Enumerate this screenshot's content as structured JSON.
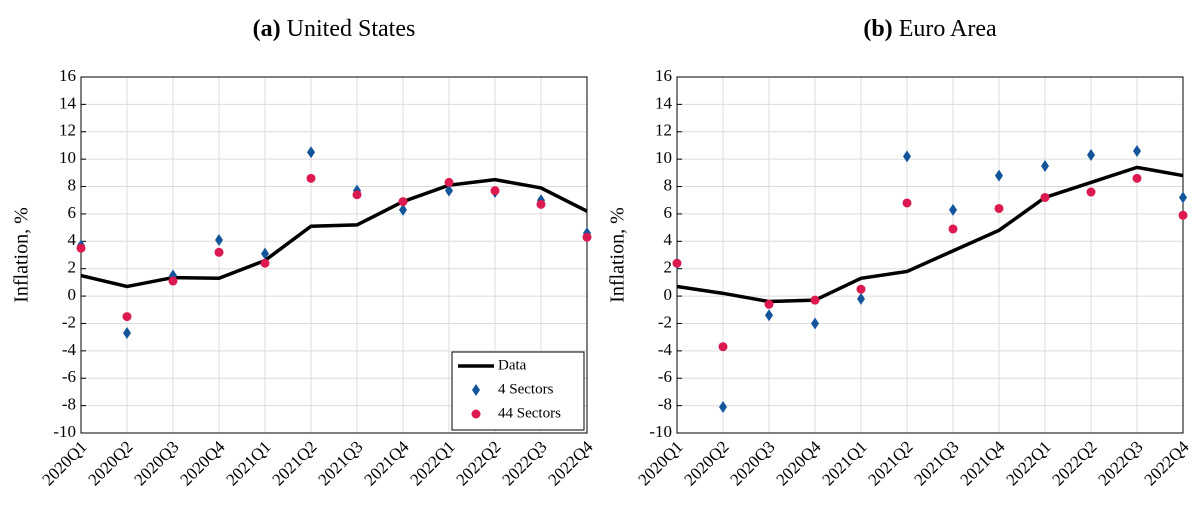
{
  "chart_data": [
    {
      "type": "line",
      "label": "(a)",
      "title": "United States",
      "ylabel": "Inflation, %",
      "categories": [
        "2020Q1",
        "2020Q2",
        "2020Q3",
        "2020Q4",
        "2021Q1",
        "2021Q2",
        "2021Q3",
        "2021Q4",
        "2022Q1",
        "2022Q2",
        "2022Q3",
        "2022Q4"
      ],
      "ylim": [
        -10,
        16
      ],
      "yticks": [
        -10,
        -8,
        -6,
        -4,
        -2,
        0,
        2,
        4,
        6,
        8,
        10,
        12,
        14,
        16
      ],
      "grid": true,
      "legend": "lower right",
      "series": [
        {
          "name": "Data",
          "color": "#000000",
          "marker": "line",
          "values": [
            1.5,
            0.7,
            1.35,
            1.3,
            2.6,
            5.1,
            5.2,
            6.9,
            8.1,
            8.5,
            7.9,
            6.2
          ]
        },
        {
          "name": "4 Sectors",
          "color": "#13559b",
          "marker": "diamond",
          "values": [
            3.7,
            -2.7,
            1.5,
            4.1,
            3.1,
            10.5,
            7.7,
            6.3,
            7.7,
            7.6,
            7.0,
            4.6
          ]
        },
        {
          "name": "44 Sectors",
          "color": "#dc1a4f",
          "marker": "circle",
          "values": [
            3.5,
            -1.5,
            1.1,
            3.2,
            2.4,
            8.6,
            7.4,
            6.9,
            8.3,
            7.7,
            6.7,
            4.3
          ]
        }
      ]
    },
    {
      "type": "line",
      "label": "(b)",
      "title": "Euro Area",
      "ylabel": "Inflation, %",
      "categories": [
        "2020Q1",
        "2020Q2",
        "2020Q3",
        "2020Q4",
        "2021Q1",
        "2021Q2",
        "2021Q3",
        "2021Q4",
        "2022Q1",
        "2022Q2",
        "2022Q3",
        "2022Q4"
      ],
      "ylim": [
        -10,
        16
      ],
      "yticks": [
        -10,
        -8,
        -6,
        -4,
        -2,
        0,
        2,
        4,
        6,
        8,
        10,
        12,
        14,
        16
      ],
      "grid": true,
      "series": [
        {
          "name": "Data",
          "color": "#000000",
          "marker": "line",
          "values": [
            0.7,
            0.2,
            -0.4,
            -0.3,
            1.3,
            1.8,
            3.3,
            4.8,
            7.2,
            8.3,
            9.4,
            8.8
          ]
        },
        {
          "name": "4 Sectors",
          "color": "#13559b",
          "marker": "diamond",
          "values": [
            2.4,
            -8.1,
            -1.4,
            -2.0,
            -0.2,
            10.2,
            6.3,
            8.8,
            9.5,
            10.3,
            10.6,
            7.2
          ]
        },
        {
          "name": "44 Sectors",
          "color": "#dc1a4f",
          "marker": "circle",
          "values": [
            2.4,
            -3.7,
            -0.6,
            -0.3,
            0.5,
            6.8,
            4.9,
            6.4,
            7.2,
            7.6,
            8.6,
            5.9
          ]
        }
      ]
    }
  ]
}
